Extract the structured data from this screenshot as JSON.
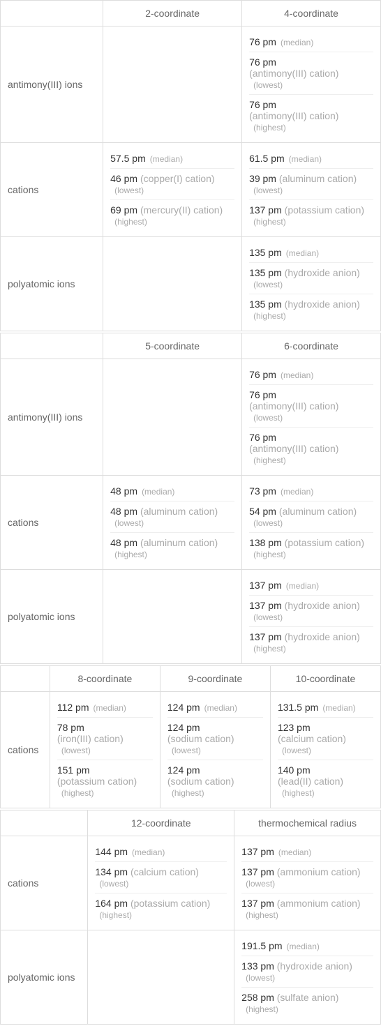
{
  "tables": [
    {
      "cols": [
        "2-coordinate",
        "4-coordinate"
      ],
      "col_widths": [
        "27%",
        "36.5%",
        "36.5%"
      ],
      "rows": [
        {
          "label": "antimony(III) ions",
          "cells": [
            null,
            [
              {
                "value": "76 pm",
                "tag": "(median)"
              },
              {
                "value": "76 pm",
                "species": "(antimony(III) cation)",
                "tag": "(lowest)",
                "block": true
              },
              {
                "value": "76 pm",
                "species": "(antimony(III) cation)",
                "tag": "(highest)",
                "block": true
              }
            ]
          ]
        },
        {
          "label": "cations",
          "cells": [
            [
              {
                "value": "57.5 pm",
                "tag": "(median)"
              },
              {
                "value": "46 pm",
                "species": "(copper(I) cation)",
                "tag": "(lowest)"
              },
              {
                "value": "69 pm",
                "species": "(mercury(II) cation)",
                "tag": "(highest)"
              }
            ],
            [
              {
                "value": "61.5 pm",
                "tag": "(median)"
              },
              {
                "value": "39 pm",
                "species": "(aluminum cation)",
                "tag": "(lowest)"
              },
              {
                "value": "137 pm",
                "species": "(potassium cation)",
                "tag": "(highest)"
              }
            ]
          ]
        },
        {
          "label": "polyatomic ions",
          "cells": [
            null,
            [
              {
                "value": "135 pm",
                "tag": "(median)"
              },
              {
                "value": "135 pm",
                "species": "(hydroxide anion)",
                "tag": "(lowest)"
              },
              {
                "value": "135 pm",
                "species": "(hydroxide anion)",
                "tag": "(highest)"
              }
            ]
          ]
        }
      ]
    },
    {
      "cols": [
        "5-coordinate",
        "6-coordinate"
      ],
      "col_widths": [
        "27%",
        "36.5%",
        "36.5%"
      ],
      "rows": [
        {
          "label": "antimony(III) ions",
          "cells": [
            null,
            [
              {
                "value": "76 pm",
                "tag": "(median)"
              },
              {
                "value": "76 pm",
                "species": "(antimony(III) cation)",
                "tag": "(lowest)",
                "block": true
              },
              {
                "value": "76 pm",
                "species": "(antimony(III) cation)",
                "tag": "(highest)",
                "block": true
              }
            ]
          ]
        },
        {
          "label": "cations",
          "cells": [
            [
              {
                "value": "48 pm",
                "tag": "(median)"
              },
              {
                "value": "48 pm",
                "species": "(aluminum cation)",
                "tag": "(lowest)"
              },
              {
                "value": "48 pm",
                "species": "(aluminum cation)",
                "tag": "(highest)"
              }
            ],
            [
              {
                "value": "73 pm",
                "tag": "(median)"
              },
              {
                "value": "54 pm",
                "species": "(aluminum cation)",
                "tag": "(lowest)"
              },
              {
                "value": "138 pm",
                "species": "(potassium cation)",
                "tag": "(highest)"
              }
            ]
          ]
        },
        {
          "label": "polyatomic ions",
          "cells": [
            null,
            [
              {
                "value": "137 pm",
                "tag": "(median)"
              },
              {
                "value": "137 pm",
                "species": "(hydroxide anion)",
                "tag": "(lowest)"
              },
              {
                "value": "137 pm",
                "species": "(hydroxide anion)",
                "tag": "(highest)"
              }
            ]
          ]
        }
      ]
    },
    {
      "cols": [
        "8-coordinate",
        "9-coordinate",
        "10-coordinate"
      ],
      "col_widths": [
        "13%",
        "29%",
        "29%",
        "29%"
      ],
      "rows": [
        {
          "label": "cations",
          "cells": [
            [
              {
                "value": "112 pm",
                "tag": "(median)"
              },
              {
                "value": "78 pm",
                "species": "(iron(III) cation)",
                "tag": "(lowest)",
                "block": true
              },
              {
                "value": "151 pm",
                "species": "(potassium cation)",
                "tag": "(highest)",
                "block": true
              }
            ],
            [
              {
                "value": "124 pm",
                "tag": "(median)"
              },
              {
                "value": "124 pm",
                "species": "(sodium cation)",
                "tag": "(lowest)",
                "block": true
              },
              {
                "value": "124 pm",
                "species": "(sodium cation)",
                "tag": "(highest)",
                "block": true
              }
            ],
            [
              {
                "value": "131.5 pm",
                "tag": "(median)"
              },
              {
                "value": "123 pm",
                "species": "(calcium cation)",
                "tag": "(lowest)",
                "block": true
              },
              {
                "value": "140 pm",
                "species": "(lead(II) cation)",
                "tag": "(highest)",
                "block": true
              }
            ]
          ]
        }
      ]
    },
    {
      "cols": [
        "12-coordinate",
        "thermochemical radius"
      ],
      "col_widths": [
        "23%",
        "38.5%",
        "38.5%"
      ],
      "rows": [
        {
          "label": "cations",
          "cells": [
            [
              {
                "value": "144 pm",
                "tag": "(median)"
              },
              {
                "value": "134 pm",
                "species": "(calcium cation)",
                "tag": "(lowest)"
              },
              {
                "value": "164 pm",
                "species": "(potassium cation)",
                "tag": "(highest)"
              }
            ],
            [
              {
                "value": "137 pm",
                "tag": "(median)"
              },
              {
                "value": "137 pm",
                "species": "(ammonium cation)",
                "tag": "(lowest)"
              },
              {
                "value": "137 pm",
                "species": "(ammonium cation)",
                "tag": "(highest)"
              }
            ]
          ]
        },
        {
          "label": "polyatomic ions",
          "cells": [
            null,
            [
              {
                "value": "191.5 pm",
                "tag": "(median)"
              },
              {
                "value": "133 pm",
                "species": "(hydroxide anion)",
                "tag": "(lowest)"
              },
              {
                "value": "258 pm",
                "species": "(sulfate anion)",
                "tag": "(highest)"
              }
            ]
          ]
        }
      ]
    }
  ]
}
